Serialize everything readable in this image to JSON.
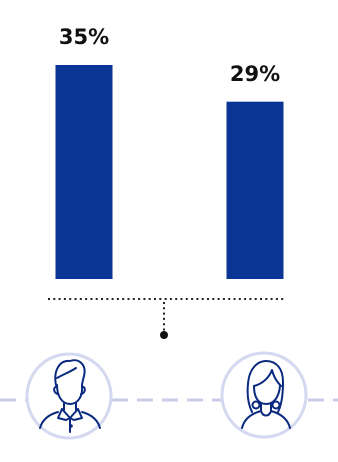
{
  "chart_data": {
    "type": "bar",
    "categories": [
      "male",
      "female"
    ],
    "values": [
      35,
      29
    ],
    "value_labels": [
      "35%",
      "29%"
    ],
    "ylim": [
      0,
      35
    ],
    "grid": false,
    "legend": "none",
    "title": "",
    "xlabel": "",
    "ylabel": ""
  },
  "icons": [
    "male-avatar-icon",
    "female-avatar-icon"
  ],
  "colors": {
    "bar": "#0a3595",
    "circle_stroke": "#d4d8f0",
    "dashed_line": "#c8cce8",
    "dotted_line": "#222222",
    "icon_stroke": "#0a2a80"
  }
}
